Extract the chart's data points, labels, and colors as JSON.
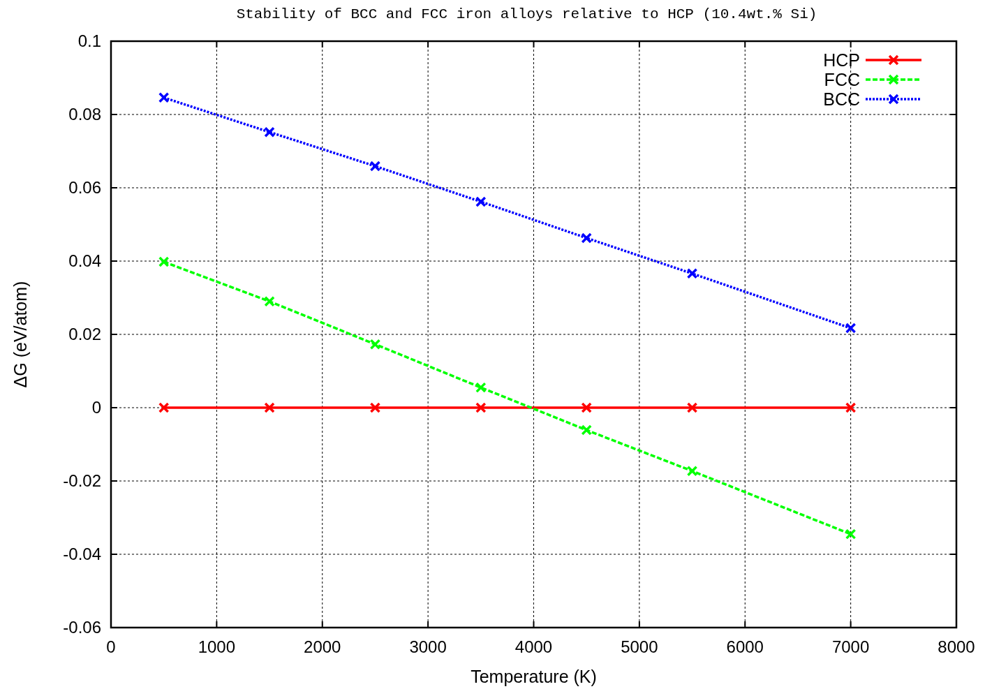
{
  "chart_data": {
    "type": "line",
    "title": "Stability of BCC and FCC iron alloys relative to HCP (10.4wt.% Si)",
    "xlabel": "Temperature (K)",
    "ylabel": "ΔG (eV/atom)",
    "x": [
      500,
      1500,
      2500,
      3500,
      4500,
      5500,
      7000
    ],
    "series": [
      {
        "name": "HCP",
        "color": "#ff0000",
        "values": [
          0,
          0,
          0,
          0,
          0,
          0,
          0
        ],
        "marker": "cross",
        "line_style": "solid"
      },
      {
        "name": "FCC",
        "color": "#00ff00",
        "values": [
          0.0398,
          0.029,
          0.0173,
          0.0055,
          -0.0061,
          -0.0173,
          -0.0345
        ],
        "marker": "cross",
        "line_style": "dashed"
      },
      {
        "name": "BCC",
        "color": "#0000ff",
        "values": [
          0.0846,
          0.0752,
          0.0659,
          0.0562,
          0.0463,
          0.0366,
          0.0217
        ],
        "marker": "cross",
        "line_style": "dotted"
      }
    ],
    "xlim": [
      0,
      8000
    ],
    "xticks": [
      0,
      1000,
      2000,
      3000,
      4000,
      5000,
      6000,
      7000,
      8000
    ],
    "ylim": [
      -0.06,
      0.1
    ],
    "yticks": [
      -0.06,
      -0.04,
      -0.02,
      0,
      0.02,
      0.04,
      0.06,
      0.08,
      0.1
    ],
    "grid": true,
    "legend": "top right"
  }
}
